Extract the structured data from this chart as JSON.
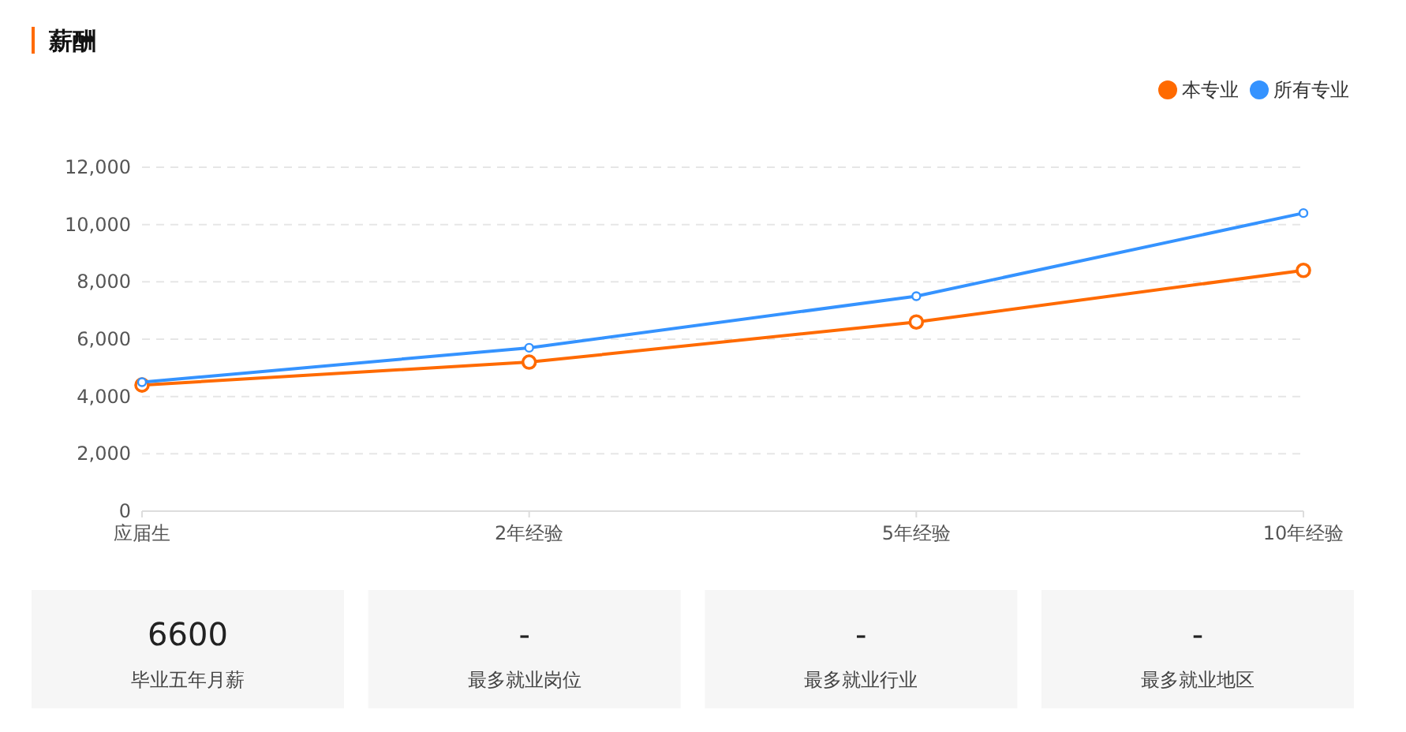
{
  "chart_data": [
    {
      "type": "line",
      "title": "薪酬",
      "categories": [
        "应届生",
        "2年经验",
        "5年经验",
        "10年经验"
      ],
      "series": [
        {
          "name": "本专业",
          "color": "#ff6a00",
          "values": [
            4400,
            5200,
            6600,
            8400
          ]
        },
        {
          "name": "所有专业",
          "color": "#3593ff",
          "values": [
            4500,
            5700,
            7500,
            10400
          ]
        }
      ],
      "ylim": [
        0,
        12000
      ],
      "yticks": [
        {
          "value": 0,
          "label": "0"
        },
        {
          "value": 2000,
          "label": "2,000"
        },
        {
          "value": 4000,
          "label": "4,000"
        },
        {
          "value": 6000,
          "label": "6,000"
        },
        {
          "value": 8000,
          "label": "8,000"
        },
        {
          "value": 10000,
          "label": "10,000"
        },
        {
          "value": 12000,
          "label": "12,000"
        }
      ],
      "grid": "y",
      "legend": "top right",
      "marker": "circle",
      "line_style": "solid"
    },
    {
      "type": "other",
      "annotations": [
        "6600",
        "毕业五年月薪",
        "-",
        "最多就业岗位",
        "-",
        "最多就业行业",
        "-",
        "最多就业地区"
      ]
    }
  ]
}
